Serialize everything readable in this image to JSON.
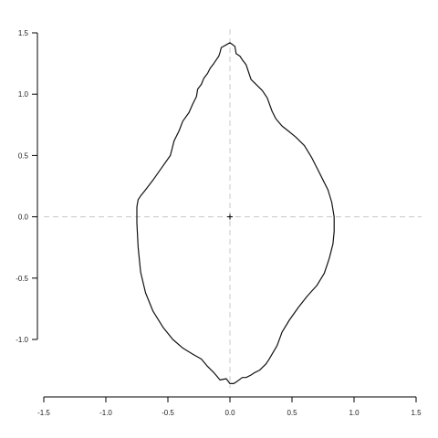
{
  "chart_data": {
    "type": "line",
    "title": "",
    "xlabel": "",
    "ylabel": "",
    "xlim": [
      -1.5,
      1.5
    ],
    "ylim": [
      -1.5,
      1.5
    ],
    "x_ticks": [
      -1.5,
      -1.0,
      -0.5,
      0.0,
      0.5,
      1.0,
      1.5
    ],
    "x_tick_labels": [
      "-1.5",
      "-1.0",
      "-0.5",
      "0.0",
      "0.5",
      "1.0",
      "1.5"
    ],
    "y_ticks": [
      -1.0,
      -0.5,
      0.0,
      0.5,
      1.0,
      1.5
    ],
    "y_tick_labels": [
      "-1.0",
      "-0.5",
      "0.0",
      "0.5",
      "1.0",
      "1.5"
    ],
    "grid": false,
    "reference_lines": {
      "x": 0,
      "y": 0,
      "style": "dashed",
      "color": "#c8c8c8"
    },
    "center_marker": {
      "x": 0,
      "y": 0,
      "symbol": "+"
    },
    "series": [
      {
        "closed": true,
        "color": "#111111",
        "x": [
          -0.07,
          0.0,
          0.04,
          0.05,
          0.08,
          0.1,
          0.13,
          0.15,
          0.17,
          0.21,
          0.26,
          0.3,
          0.34,
          0.37,
          0.42,
          0.47,
          0.53,
          0.6,
          0.66,
          0.71,
          0.75,
          0.79,
          0.82,
          0.84,
          0.84,
          0.83,
          0.8,
          0.76,
          0.7,
          0.62,
          0.55,
          0.48,
          0.42,
          0.38,
          0.34,
          0.31,
          0.29,
          0.27,
          0.24,
          0.2,
          0.17,
          0.13,
          0.1,
          0.06,
          0.03,
          0.0,
          -0.03,
          -0.08,
          -0.13,
          -0.18,
          -0.23,
          -0.3,
          -0.38,
          -0.46,
          -0.54,
          -0.62,
          -0.68,
          -0.72,
          -0.74,
          -0.75,
          -0.75,
          -0.74,
          -0.72,
          -0.68,
          -0.62,
          -0.55,
          -0.48,
          -0.45,
          -0.41,
          -0.38,
          -0.33,
          -0.3,
          -0.27,
          -0.26,
          -0.23,
          -0.21,
          -0.18,
          -0.16,
          -0.13,
          -0.11,
          -0.09,
          -0.08,
          -0.07
        ],
        "y": [
          1.38,
          1.42,
          1.39,
          1.33,
          1.31,
          1.28,
          1.24,
          1.18,
          1.12,
          1.08,
          1.03,
          0.97,
          0.86,
          0.8,
          0.74,
          0.7,
          0.65,
          0.58,
          0.48,
          0.38,
          0.3,
          0.22,
          0.12,
          0.0,
          -0.12,
          -0.22,
          -0.34,
          -0.46,
          -0.56,
          -0.65,
          -0.74,
          -0.84,
          -0.94,
          -1.05,
          -1.12,
          -1.17,
          -1.2,
          -1.22,
          -1.25,
          -1.27,
          -1.29,
          -1.31,
          -1.31,
          -1.34,
          -1.36,
          -1.36,
          -1.32,
          -1.33,
          -1.27,
          -1.22,
          -1.16,
          -1.12,
          -1.07,
          -1.0,
          -0.9,
          -0.77,
          -0.62,
          -0.45,
          -0.25,
          -0.05,
          0.08,
          0.14,
          0.17,
          0.22,
          0.3,
          0.4,
          0.5,
          0.62,
          0.7,
          0.78,
          0.85,
          0.92,
          0.98,
          1.04,
          1.08,
          1.13,
          1.17,
          1.21,
          1.25,
          1.28,
          1.31,
          1.34,
          1.38
        ]
      }
    ]
  }
}
